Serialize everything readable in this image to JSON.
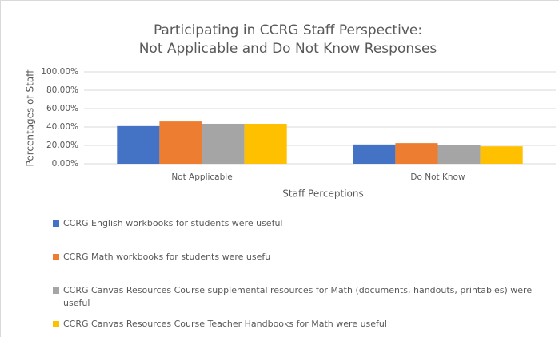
{
  "chart_data": {
    "type": "bar",
    "title": [
      "Participating in CCRG Staff Perspective:",
      "Not Applicable and Do Not Know Responses"
    ],
    "x_label": "Staff Perceptions",
    "y_label": "Percentages of Staff",
    "categories": [
      "Not Applicable",
      "Do Not Know"
    ],
    "series": [
      {
        "name": "CCRG English workbooks for students were useful",
        "color": "#4472c4",
        "values": [
          41,
          21
        ]
      },
      {
        "name": "CCRG Math workbooks for students were usefu",
        "color": "#ed7d31",
        "values": [
          46,
          22.5
        ]
      },
      {
        "name": "CCRG Canvas Resources Course supplemental resources for Math (documents, handouts, printables) were useful",
        "color": "#a5a5a5",
        "values": [
          43.5,
          20
        ]
      },
      {
        "name": "CCRG Canvas Resources Course Teacher Handbooks for Math were useful",
        "color": "#ffc000",
        "values": [
          43.5,
          19
        ]
      }
    ],
    "ylim": [
      0,
      100
    ],
    "yticks": [
      {
        "value": 0,
        "label": "0.00%"
      },
      {
        "value": 20,
        "label": "20.00%"
      },
      {
        "value": 40,
        "label": "40.00%"
      },
      {
        "value": 60,
        "label": "60.00%"
      },
      {
        "value": 80,
        "label": "80.00%"
      },
      {
        "value": 100,
        "label": "100.00%"
      }
    ],
    "grid": true,
    "legend": "bottom"
  }
}
